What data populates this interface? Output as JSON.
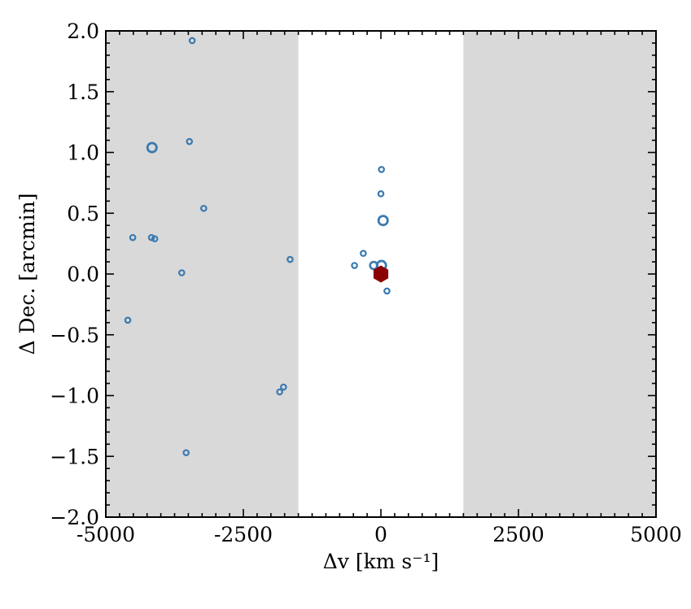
{
  "chart_data": {
    "type": "scatter",
    "xlabel": "Δv [km s⁻¹]",
    "ylabel": "Δ Dec. [arcmin]",
    "xlim": [
      -5000,
      5000
    ],
    "ylim": [
      -2.0,
      2.0
    ],
    "x_ticks": [
      -5000,
      -2500,
      0,
      2500,
      5000
    ],
    "x_tick_labels": [
      "-5000",
      "-2500",
      "0",
      "2500",
      "5000"
    ],
    "y_ticks": [
      -2.0,
      -1.5,
      -1.0,
      -0.5,
      0.0,
      0.5,
      1.0,
      1.5,
      2.0
    ],
    "y_tick_labels": [
      "−2.0",
      "−1.5",
      "−1.0",
      "−0.5",
      "0.0",
      "0.5",
      "1.0",
      "1.5",
      "2.0"
    ],
    "grid": false,
    "shaded_regions": [
      {
        "x_range": [
          -5000,
          -1500
        ],
        "color": "#d9d9d9"
      },
      {
        "x_range": [
          1500,
          5000
        ],
        "color": "#d9d9d9"
      }
    ],
    "series": [
      {
        "marker": "open-circle",
        "color": "#3a7ab0",
        "points": [
          {
            "x": -3430,
            "y": 1.92,
            "size": "small"
          },
          {
            "x": -4160,
            "y": 1.04,
            "size": "large"
          },
          {
            "x": -3480,
            "y": 1.09,
            "size": "small"
          },
          {
            "x": -3220,
            "y": 0.54,
            "size": "small"
          },
          {
            "x": -4510,
            "y": 0.3,
            "size": "small"
          },
          {
            "x": -4170,
            "y": 0.3,
            "size": "small"
          },
          {
            "x": -4110,
            "y": 0.29,
            "size": "small"
          },
          {
            "x": -3620,
            "y": 0.01,
            "size": "small"
          },
          {
            "x": -1650,
            "y": 0.12,
            "size": "small"
          },
          {
            "x": -4600,
            "y": -0.38,
            "size": "small"
          },
          {
            "x": -1770,
            "y": -0.93,
            "size": "small"
          },
          {
            "x": -1840,
            "y": -0.97,
            "size": "small"
          },
          {
            "x": -3540,
            "y": -1.47,
            "size": "small"
          },
          {
            "x": 10,
            "y": 0.86,
            "size": "small"
          },
          {
            "x": 0,
            "y": 0.66,
            "size": "small"
          },
          {
            "x": 40,
            "y": 0.44,
            "size": "large"
          },
          {
            "x": -320,
            "y": 0.17,
            "size": "small"
          },
          {
            "x": -480,
            "y": 0.07,
            "size": "small"
          },
          {
            "x": -130,
            "y": 0.07,
            "size": "medium"
          },
          {
            "x": 10,
            "y": 0.07,
            "size": "large"
          },
          {
            "x": 110,
            "y": -0.14,
            "size": "small"
          }
        ]
      },
      {
        "marker": "filled-hexagon",
        "color": "#8b0000",
        "points": [
          {
            "x": 0,
            "y": 0.0
          }
        ]
      }
    ]
  }
}
